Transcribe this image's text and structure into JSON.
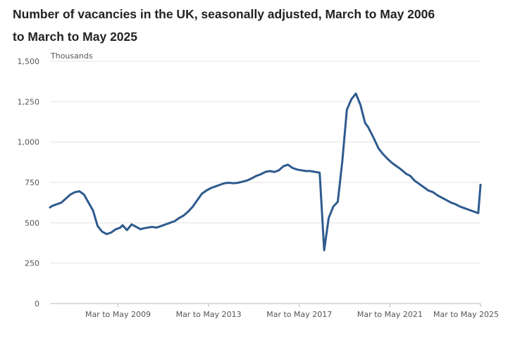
{
  "chart_data": {
    "type": "line",
    "title": {
      "line1": "Number of vacancies in the UK, seasonally adjusted, March to May 2006",
      "line2": "to March to May 2025"
    },
    "unit_label": "Thousands",
    "xlabel": "",
    "ylabel": "Thousands",
    "ylim": [
      0,
      1500
    ],
    "xlim": [
      2006,
      2025
    ],
    "yticks": [
      {
        "value": 0,
        "label": "0"
      },
      {
        "value": 250,
        "label": "250"
      },
      {
        "value": 500,
        "label": "500"
      },
      {
        "value": 750,
        "label": "750"
      },
      {
        "value": 1000,
        "label": "1,000"
      },
      {
        "value": 1250,
        "label": "1,250"
      },
      {
        "value": 1500,
        "label": "1,500"
      }
    ],
    "xticks": [
      {
        "value": 2009,
        "label": "Mar to May 2009"
      },
      {
        "value": 2013,
        "label": "Mar to May 2013"
      },
      {
        "value": 2017,
        "label": "Mar to May 2017"
      },
      {
        "value": 2021,
        "label": "Mar to May 2021"
      },
      {
        "value": 2025,
        "label": "Mar to May 2025"
      }
    ],
    "grid": true,
    "color": "#2e5b8e",
    "series": [
      {
        "name": "Vacancies",
        "x": [
          2006.0,
          2006.1,
          2006.3,
          2006.5,
          2006.7,
          2006.9,
          2007.1,
          2007.3,
          2007.5,
          2007.7,
          2007.9,
          2008.1,
          2008.3,
          2008.5,
          2008.7,
          2008.9,
          2009.0,
          2009.1,
          2009.2,
          2009.4,
          2009.6,
          2009.8,
          2010.0,
          2010.1,
          2010.3,
          2010.5,
          2010.7,
          2010.9,
          2011.1,
          2011.3,
          2011.5,
          2011.7,
          2011.9,
          2012.1,
          2012.3,
          2012.5,
          2012.7,
          2012.9,
          2013.1,
          2013.3,
          2013.5,
          2013.7,
          2013.9,
          2014.1,
          2014.3,
          2014.5,
          2014.7,
          2014.9,
          2015.1,
          2015.3,
          2015.5,
          2015.7,
          2015.9,
          2016.1,
          2016.3,
          2016.5,
          2016.7,
          2016.9,
          2017.1,
          2017.3,
          2017.5,
          2017.7,
          2017.9,
          2018.1,
          2018.3,
          2018.5,
          2018.7,
          2018.9,
          2019.1,
          2019.3,
          2019.5,
          2019.7,
          2019.9,
          2020.05,
          2020.3,
          2020.5,
          2020.7,
          2020.9,
          2021.1,
          2021.3,
          2021.5,
          2021.7,
          2021.9,
          2022.1,
          2022.3,
          2022.5,
          2022.7,
          2022.9,
          2023.1,
          2023.3,
          2023.5,
          2023.7,
          2023.9,
          2024.1,
          2024.3,
          2024.5,
          2024.7,
          2024.9,
          2025.0
        ],
        "values": [
          595,
          605,
          615,
          625,
          650,
          675,
          690,
          695,
          675,
          625,
          575,
          480,
          445,
          430,
          440,
          460,
          465,
          470,
          485,
          455,
          490,
          475,
          460,
          465,
          470,
          475,
          470,
          480,
          490,
          500,
          510,
          530,
          545,
          570,
          600,
          640,
          680,
          700,
          715,
          725,
          735,
          745,
          748,
          745,
          748,
          755,
          762,
          775,
          790,
          800,
          815,
          820,
          815,
          825,
          850,
          860,
          840,
          830,
          825,
          820,
          820,
          815,
          810,
          330,
          530,
          600,
          630,
          880,
          1200,
          1265,
          1300,
          1230,
          1120,
          1090,
          1020,
          960,
          925,
          895,
          870,
          850,
          830,
          805,
          790,
          760,
          740,
          720,
          700,
          690,
          670,
          655,
          640,
          625,
          615,
          600,
          590,
          580,
          570,
          560,
          735
        ]
      }
    ]
  }
}
